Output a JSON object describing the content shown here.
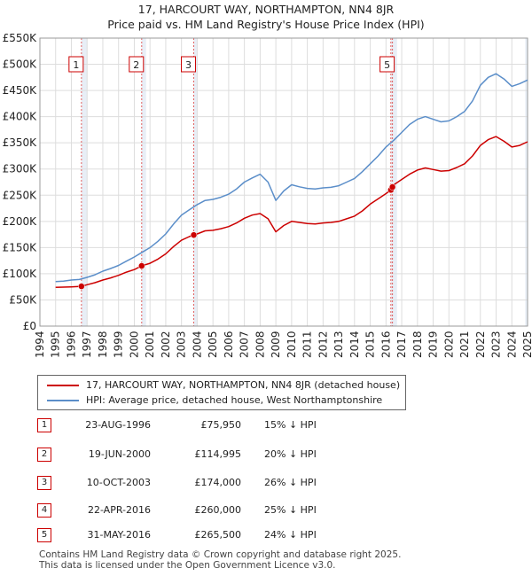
{
  "title_line1": "17, HARCOURT WAY, NORTHAMPTON, NN4 8JR",
  "title_line2": "Price paid vs. HM Land Registry's House Price Index (HPI)",
  "colors": {
    "property": "#cc0000",
    "hpi": "#5b8ec9",
    "marker": "#cc0000",
    "grid": "#dddddd",
    "band": "#e8eef6"
  },
  "legend": {
    "property": "17, HARCOURT WAY, NORTHAMPTON, NN4 8JR (detached house)",
    "hpi": "HPI: Average price, detached house, West Northamptonshire"
  },
  "sales": [
    {
      "num": "1",
      "date": "23-AUG-1996",
      "price": "£75,950",
      "hpi": "15% ↓ HPI"
    },
    {
      "num": "2",
      "date": "19-JUN-2000",
      "price": "£114,995",
      "hpi": "20% ↓ HPI"
    },
    {
      "num": "3",
      "date": "10-OCT-2003",
      "price": "£174,000",
      "hpi": "26% ↓ HPI"
    },
    {
      "num": "4",
      "date": "22-APR-2016",
      "price": "£260,000",
      "hpi": "25% ↓ HPI"
    },
    {
      "num": "5",
      "date": "31-MAY-2016",
      "price": "£265,500",
      "hpi": "24% ↓ HPI"
    }
  ],
  "footer_line1": "Contains HM Land Registry data © Crown copyright and database right 2025.",
  "footer_line2": "This data is licensed under the Open Government Licence v3.0.",
  "chart_data": {
    "type": "line",
    "title": "17, HARCOURT WAY, NORTHAMPTON, NN4 8JR — Price paid vs. HM Land Registry's House Price Index (HPI)",
    "xlabel": "",
    "ylabel": "",
    "xlim": [
      1994,
      2025
    ],
    "ylim": [
      0,
      550000
    ],
    "y_ticks": [
      0,
      50000,
      100000,
      150000,
      200000,
      250000,
      300000,
      350000,
      400000,
      450000,
      500000,
      550000
    ],
    "y_tick_labels": [
      "£0",
      "£50K",
      "£100K",
      "£150K",
      "£200K",
      "£250K",
      "£300K",
      "£350K",
      "£400K",
      "£450K",
      "£500K",
      "£550K"
    ],
    "x_ticks": [
      1994,
      1995,
      1996,
      1997,
      1998,
      1999,
      2000,
      2001,
      2002,
      2003,
      2004,
      2005,
      2006,
      2007,
      2008,
      2009,
      2010,
      2011,
      2012,
      2013,
      2014,
      2015,
      2016,
      2017,
      2018,
      2019,
      2020,
      2021,
      2022,
      2023,
      2024,
      2025
    ],
    "x_tick_labels": [
      "1994",
      "1995",
      "1996",
      "1997",
      "1998",
      "1999",
      "2000",
      "2001",
      "2002",
      "2003",
      "2004",
      "2005",
      "2006",
      "2007",
      "2008",
      "2009",
      "2010",
      "2011",
      "2012",
      "2013",
      "2014",
      "2015",
      "2016",
      "2017",
      "2018",
      "2019",
      "2020",
      "2021",
      "2022",
      "2023",
      "2024",
      "2025"
    ],
    "legend_position": "below chart",
    "series": [
      {
        "name": "HPI: Average price, detached house, West Northamptonshire",
        "x": [
          1995.0,
          1995.5,
          1996.0,
          1996.5,
          1997.0,
          1997.5,
          1998.0,
          1998.5,
          1999.0,
          1999.5,
          2000.0,
          2000.5,
          2001.0,
          2001.5,
          2002.0,
          2002.5,
          2003.0,
          2003.5,
          2004.0,
          2004.5,
          2005.0,
          2005.5,
          2006.0,
          2006.5,
          2007.0,
          2007.5,
          2008.0,
          2008.5,
          2009.0,
          2009.5,
          2010.0,
          2010.5,
          2011.0,
          2011.5,
          2012.0,
          2012.5,
          2013.0,
          2013.5,
          2014.0,
          2014.5,
          2015.0,
          2015.5,
          2016.0,
          2016.5,
          2017.0,
          2017.5,
          2018.0,
          2018.5,
          2019.0,
          2019.5,
          2020.0,
          2020.5,
          2021.0,
          2021.5,
          2022.0,
          2022.5,
          2023.0,
          2023.5,
          2024.0,
          2024.5,
          2025.0
        ],
        "values": [
          85000,
          86000,
          88000,
          89000,
          93000,
          98000,
          105000,
          110000,
          116000,
          124000,
          132000,
          141000,
          150000,
          162000,
          176000,
          195000,
          212000,
          222000,
          232000,
          240000,
          242000,
          246000,
          252000,
          262000,
          275000,
          283000,
          290000,
          275000,
          240000,
          258000,
          270000,
          266000,
          263000,
          262000,
          264000,
          265000,
          268000,
          275000,
          282000,
          295000,
          310000,
          325000,
          342000,
          355000,
          370000,
          385000,
          395000,
          400000,
          395000,
          390000,
          392000,
          400000,
          410000,
          430000,
          460000,
          475000,
          482000,
          472000,
          458000,
          463000,
          470000
        ]
      },
      {
        "name": "17, HARCOURT WAY, NORTHAMPTON, NN4 8JR (detached house)",
        "x": [
          1995.0,
          1995.5,
          1996.0,
          1996.64,
          1997.0,
          1997.5,
          1998.0,
          1998.5,
          1999.0,
          1999.5,
          2000.0,
          2000.47,
          2001.0,
          2001.5,
          2002.0,
          2002.5,
          2003.0,
          2003.5,
          2003.78,
          2004.0,
          2004.5,
          2005.0,
          2005.5,
          2006.0,
          2006.5,
          2007.0,
          2007.5,
          2008.0,
          2008.5,
          2009.0,
          2009.5,
          2010.0,
          2010.5,
          2011.0,
          2011.5,
          2012.0,
          2012.5,
          2013.0,
          2013.5,
          2014.0,
          2014.5,
          2015.0,
          2015.5,
          2016.0,
          2016.31,
          2016.41,
          2016.5,
          2017.0,
          2017.5,
          2018.0,
          2018.5,
          2019.0,
          2019.5,
          2020.0,
          2020.5,
          2021.0,
          2021.5,
          2022.0,
          2022.5,
          2023.0,
          2023.5,
          2024.0,
          2024.5,
          2025.0
        ],
        "values": [
          74000,
          74500,
          75000,
          75950,
          79000,
          83000,
          88000,
          92000,
          97000,
          103000,
          108000,
          114995,
          120000,
          128000,
          138000,
          152000,
          164000,
          171000,
          174000,
          176000,
          182000,
          183000,
          186000,
          190000,
          197000,
          206000,
          212000,
          215000,
          205000,
          180000,
          192000,
          200000,
          198000,
          196000,
          195000,
          197000,
          198000,
          200000,
          205000,
          210000,
          220000,
          233000,
          243000,
          253000,
          260000,
          265500,
          270000,
          280000,
          290000,
          298000,
          302000,
          299000,
          296000,
          297000,
          303000,
          310000,
          325000,
          345000,
          356000,
          362000,
          353000,
          342000,
          345000,
          352000
        ]
      }
    ],
    "sale_markers": [
      {
        "label": "1",
        "x": 1996.64,
        "value": 75950
      },
      {
        "label": "2",
        "x": 2000.47,
        "value": 114995
      },
      {
        "label": "3",
        "x": 2003.78,
        "value": 174000
      },
      {
        "label": "4",
        "x": 2016.31,
        "value": 260000
      },
      {
        "label": "5",
        "x": 2016.41,
        "value": 265500
      }
    ],
    "marker_boxes_shown": [
      "1",
      "2",
      "3",
      "5"
    ]
  }
}
